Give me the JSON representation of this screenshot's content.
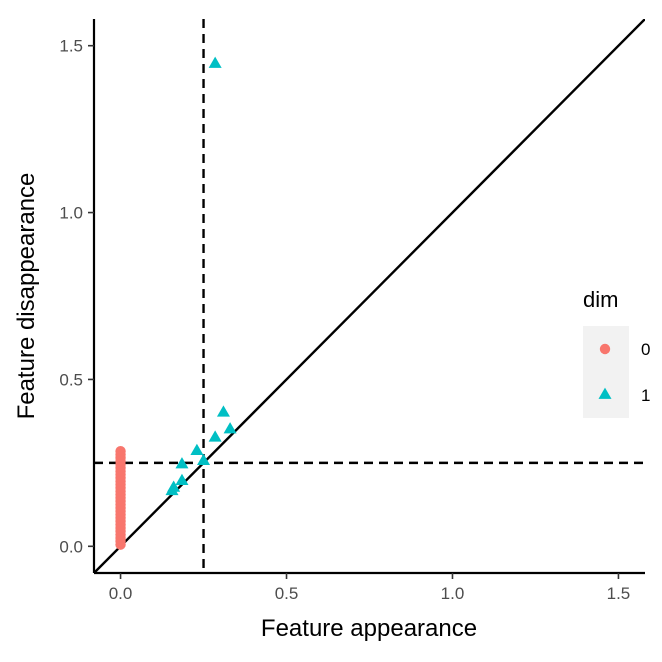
{
  "chart_data": {
    "type": "scatter",
    "title": "",
    "xlabel": "Feature appearance",
    "ylabel": "Feature disappearance",
    "xlim": [
      -0.08,
      1.58
    ],
    "ylim": [
      -0.08,
      1.58
    ],
    "x_ticks": [
      {
        "value": 0.0,
        "label": "0.0"
      },
      {
        "value": 0.5,
        "label": "0.5"
      },
      {
        "value": 1.0,
        "label": "1.0"
      },
      {
        "value": 1.5,
        "label": "1.5"
      }
    ],
    "y_ticks": [
      {
        "value": 0.0,
        "label": "0.0"
      },
      {
        "value": 0.5,
        "label": "0.5"
      },
      {
        "value": 1.0,
        "label": "1.0"
      },
      {
        "value": 1.5,
        "label": "1.5"
      }
    ],
    "grid": false,
    "diagonal_line": {
      "from": [
        -0.08,
        -0.08
      ],
      "to": [
        1.58,
        1.58
      ],
      "style": "solid"
    },
    "reference_lines": [
      {
        "orientation": "vertical",
        "value": 0.25,
        "style": "dashed"
      },
      {
        "orientation": "horizontal",
        "value": 0.25,
        "style": "dashed"
      }
    ],
    "legend": {
      "title": "dim",
      "position": "right",
      "entries": [
        {
          "label": "0",
          "shape": "circle",
          "color": "#F8766D"
        },
        {
          "label": "1",
          "shape": "triangle",
          "color": "#00BFC4"
        }
      ]
    },
    "series": [
      {
        "name": "0",
        "shape": "circle",
        "color": "#F8766D",
        "points": [
          [
            0,
            0.005
          ],
          [
            0,
            0.015
          ],
          [
            0,
            0.025
          ],
          [
            0,
            0.035
          ],
          [
            0,
            0.045
          ],
          [
            0,
            0.055
          ],
          [
            0,
            0.065
          ],
          [
            0,
            0.075
          ],
          [
            0,
            0.085
          ],
          [
            0,
            0.095
          ],
          [
            0,
            0.105
          ],
          [
            0,
            0.115
          ],
          [
            0,
            0.125
          ],
          [
            0,
            0.135
          ],
          [
            0,
            0.145
          ],
          [
            0,
            0.155
          ],
          [
            0,
            0.165
          ],
          [
            0,
            0.175
          ],
          [
            0,
            0.185
          ],
          [
            0,
            0.195
          ],
          [
            0,
            0.205
          ],
          [
            0,
            0.215
          ],
          [
            0,
            0.225
          ],
          [
            0,
            0.235
          ],
          [
            0,
            0.245
          ],
          [
            0,
            0.255
          ],
          [
            0,
            0.265
          ],
          [
            0,
            0.275
          ],
          [
            0,
            0.285
          ]
        ]
      },
      {
        "name": "1",
        "shape": "triangle",
        "color": "#00BFC4",
        "points": [
          [
            0.285,
            1.445
          ],
          [
            0.31,
            0.4
          ],
          [
            0.33,
            0.35
          ],
          [
            0.285,
            0.325
          ],
          [
            0.23,
            0.285
          ],
          [
            0.185,
            0.245
          ],
          [
            0.25,
            0.255
          ],
          [
            0.185,
            0.195
          ],
          [
            0.16,
            0.175
          ],
          [
            0.155,
            0.165
          ]
        ]
      }
    ]
  }
}
